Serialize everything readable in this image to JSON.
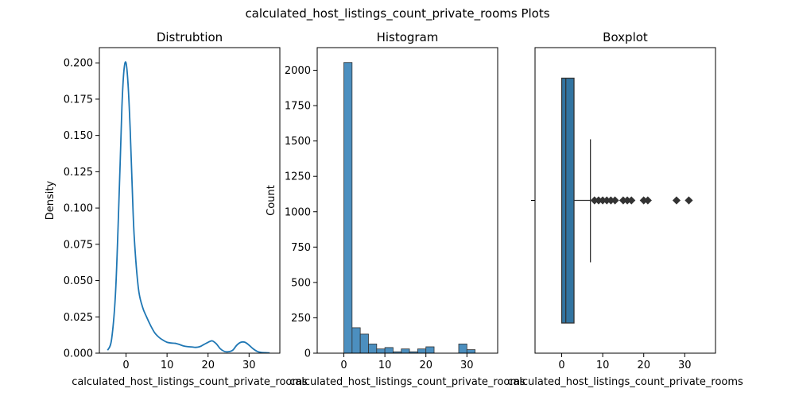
{
  "figure": {
    "title": "calculated_host_listings_count_private_rooms Plots"
  },
  "colors": {
    "kde": "#1f77b4",
    "hist": "#4c8fbf",
    "box": "#3274a1",
    "edge": "#333333"
  },
  "chart_data": [
    {
      "type": "line",
      "title": "Distrubtion",
      "xlabel": "calculated_host_listings_count_private_rooms",
      "ylabel": "Density",
      "xlim": [
        -6.5,
        37.5
      ],
      "ylim": [
        0,
        0.2105
      ],
      "xticks": [
        0,
        10,
        20,
        30
      ],
      "xtick_labels": [
        "0",
        "10",
        "20",
        "30"
      ],
      "yticks": [
        0,
        0.025,
        0.05,
        0.075,
        0.1,
        0.125,
        0.15,
        0.175,
        0.2
      ],
      "ytick_labels": [
        "0.000",
        "0.025",
        "0.050",
        "0.075",
        "0.100",
        "0.125",
        "0.150",
        "0.175",
        "0.200"
      ],
      "x": [
        -4.5,
        -3.5,
        -2.5,
        -1.5,
        -1,
        -0.5,
        0,
        0.5,
        1,
        1.5,
        2,
        3,
        4,
        5,
        6,
        7,
        8,
        9,
        10,
        11,
        12,
        13,
        14,
        15,
        16,
        17,
        18,
        19,
        20,
        21,
        22,
        23,
        24,
        25,
        26,
        27,
        28,
        29,
        30,
        31,
        32,
        33,
        34,
        35
      ],
      "y": [
        0.002,
        0.01,
        0.045,
        0.125,
        0.17,
        0.195,
        0.2,
        0.185,
        0.155,
        0.115,
        0.08,
        0.045,
        0.032,
        0.025,
        0.019,
        0.014,
        0.011,
        0.009,
        0.0075,
        0.007,
        0.0068,
        0.006,
        0.005,
        0.0045,
        0.0043,
        0.004,
        0.0045,
        0.006,
        0.0075,
        0.0085,
        0.0065,
        0.003,
        0.0012,
        0.001,
        0.002,
        0.0055,
        0.0075,
        0.0075,
        0.0055,
        0.003,
        0.0012,
        0.0005,
        0.0003,
        0.0002
      ]
    },
    {
      "type": "bar",
      "title": "Histogram",
      "xlabel": "calculated_host_listings_count_private_rooms",
      "ylabel": "Count",
      "xlim": [
        -6.5,
        37.5
      ],
      "ylim": [
        0,
        2160
      ],
      "bin_width": 2,
      "bin_edges": [
        0,
        2,
        4,
        6,
        8,
        10,
        12,
        14,
        16,
        18,
        20,
        22,
        24,
        26,
        28,
        30,
        32
      ],
      "values": [
        2055,
        180,
        135,
        65,
        30,
        40,
        10,
        30,
        10,
        30,
        45,
        0,
        0,
        0,
        65,
        25
      ],
      "xticks": [
        0,
        10,
        20,
        30
      ],
      "xtick_labels": [
        "0",
        "10",
        "20",
        "30"
      ],
      "yticks": [
        0,
        250,
        500,
        750,
        1000,
        1250,
        1500,
        1750,
        2000
      ],
      "ytick_labels": [
        "0",
        "250",
        "500",
        "750",
        "1000",
        "1250",
        "1500",
        "1750",
        "2000"
      ]
    },
    {
      "type": "box",
      "title": "Boxplot",
      "xlabel": "calculated_host_listings_count_private_rooms",
      "xlim": [
        -6.5,
        37.5
      ],
      "xticks": [
        0,
        10,
        20,
        30
      ],
      "xtick_labels": [
        "0",
        "10",
        "20",
        "30"
      ],
      "q1": 0,
      "median": 1,
      "q3": 3,
      "whisker_low": 0,
      "whisker_high": 7,
      "outliers": [
        8,
        9,
        10,
        11,
        12,
        13,
        15,
        16,
        17,
        20,
        21,
        28,
        31
      ]
    }
  ]
}
